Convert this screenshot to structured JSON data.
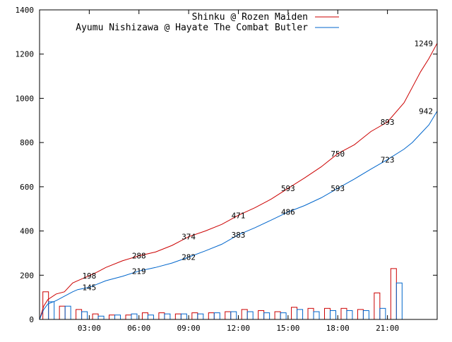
{
  "chart_data": {
    "type": "line",
    "xlim": [
      0,
      24
    ],
    "ylim": [
      0,
      1400
    ],
    "x_ticks": [
      {
        "value": 3,
        "label": "03:00"
      },
      {
        "value": 6,
        "label": "06:00"
      },
      {
        "value": 9,
        "label": "09:00"
      },
      {
        "value": 12,
        "label": "12:00"
      },
      {
        "value": 15,
        "label": "15:00"
      },
      {
        "value": 18,
        "label": "18:00"
      },
      {
        "value": 21,
        "label": "21:00"
      }
    ],
    "y_ticks": [
      {
        "value": 0,
        "label": "0"
      },
      {
        "value": 200,
        "label": "200"
      },
      {
        "value": 400,
        "label": "400"
      },
      {
        "value": 600,
        "label": "600"
      },
      {
        "value": 800,
        "label": "800"
      },
      {
        "value": 1000,
        "label": "1000"
      },
      {
        "value": 1200,
        "label": "1200"
      },
      {
        "value": 1400,
        "label": "1400"
      }
    ],
    "grid": false,
    "legend_position": "top-right",
    "series": [
      {
        "name": "Shinku @ Rozen Maiden",
        "color": "#cc0000",
        "cumulative": [
          [
            0,
            0
          ],
          [
            0.25,
            60
          ],
          [
            0.5,
            90
          ],
          [
            1,
            115
          ],
          [
            1.5,
            125
          ],
          [
            2,
            165
          ],
          [
            2.3,
            175
          ],
          [
            3,
            198
          ],
          [
            3.5,
            215
          ],
          [
            4,
            235
          ],
          [
            5,
            265
          ],
          [
            6,
            288
          ],
          [
            7,
            305
          ],
          [
            8,
            335
          ],
          [
            9,
            374
          ],
          [
            10,
            400
          ],
          [
            11,
            430
          ],
          [
            12,
            471
          ],
          [
            13,
            505
          ],
          [
            14,
            545
          ],
          [
            15,
            593
          ],
          [
            16,
            640
          ],
          [
            17,
            690
          ],
          [
            18,
            750
          ],
          [
            19,
            790
          ],
          [
            20,
            850
          ],
          [
            21,
            893
          ],
          [
            22,
            980
          ],
          [
            22.5,
            1050
          ],
          [
            23,
            1120
          ],
          [
            23.5,
            1180
          ],
          [
            24,
            1249
          ]
        ],
        "hourly": [
          125,
          60,
          45,
          25,
          20,
          20,
          30,
          30,
          25,
          30,
          30,
          35,
          45,
          40,
          35,
          55,
          50,
          50,
          50,
          45,
          120,
          230
        ]
      },
      {
        "name": "Ayumu Nishizawa @ Hayate The Combat Butler",
        "color": "#0066cc",
        "cumulative": [
          [
            0,
            0
          ],
          [
            0.25,
            45
          ],
          [
            0.5,
            70
          ],
          [
            1,
            85
          ],
          [
            1.5,
            105
          ],
          [
            2,
            125
          ],
          [
            2.3,
            135
          ],
          [
            3,
            145
          ],
          [
            3.5,
            160
          ],
          [
            4,
            175
          ],
          [
            5,
            195
          ],
          [
            6,
            219
          ],
          [
            7,
            235
          ],
          [
            8,
            255
          ],
          [
            9,
            282
          ],
          [
            10,
            310
          ],
          [
            11,
            340
          ],
          [
            12,
            383
          ],
          [
            13,
            415
          ],
          [
            14,
            450
          ],
          [
            15,
            486
          ],
          [
            16,
            515
          ],
          [
            17,
            550
          ],
          [
            18,
            593
          ],
          [
            19,
            635
          ],
          [
            20,
            680
          ],
          [
            21,
            723
          ],
          [
            22,
            770
          ],
          [
            22.5,
            800
          ],
          [
            23,
            840
          ],
          [
            23.5,
            880
          ],
          [
            24,
            942
          ]
        ],
        "hourly": [
          80,
          60,
          35,
          15,
          20,
          25,
          20,
          25,
          25,
          25,
          30,
          35,
          35,
          30,
          30,
          45,
          35,
          40,
          40,
          40,
          50,
          165
        ]
      }
    ],
    "data_labels": [
      {
        "series": 0,
        "x": 3,
        "y": 198,
        "text": "198"
      },
      {
        "series": 0,
        "x": 6,
        "y": 288,
        "text": "288"
      },
      {
        "series": 0,
        "x": 9,
        "y": 374,
        "text": "374"
      },
      {
        "series": 0,
        "x": 12,
        "y": 471,
        "text": "471"
      },
      {
        "series": 0,
        "x": 15,
        "y": 593,
        "text": "593"
      },
      {
        "series": 0,
        "x": 18,
        "y": 750,
        "text": "750"
      },
      {
        "series": 0,
        "x": 21,
        "y": 893,
        "text": "893"
      },
      {
        "series": 0,
        "x": 24,
        "y": 1249,
        "text": "1249"
      },
      {
        "series": 1,
        "x": 3,
        "y": 145,
        "text": "145"
      },
      {
        "series": 1,
        "x": 6,
        "y": 219,
        "text": "219"
      },
      {
        "series": 1,
        "x": 9,
        "y": 282,
        "text": "282"
      },
      {
        "series": 1,
        "x": 12,
        "y": 383,
        "text": "383"
      },
      {
        "series": 1,
        "x": 15,
        "y": 486,
        "text": "486"
      },
      {
        "series": 1,
        "x": 18,
        "y": 593,
        "text": "593"
      },
      {
        "series": 1,
        "x": 21,
        "y": 723,
        "text": "723"
      },
      {
        "series": 1,
        "x": 24,
        "y": 942,
        "text": "942"
      }
    ]
  }
}
